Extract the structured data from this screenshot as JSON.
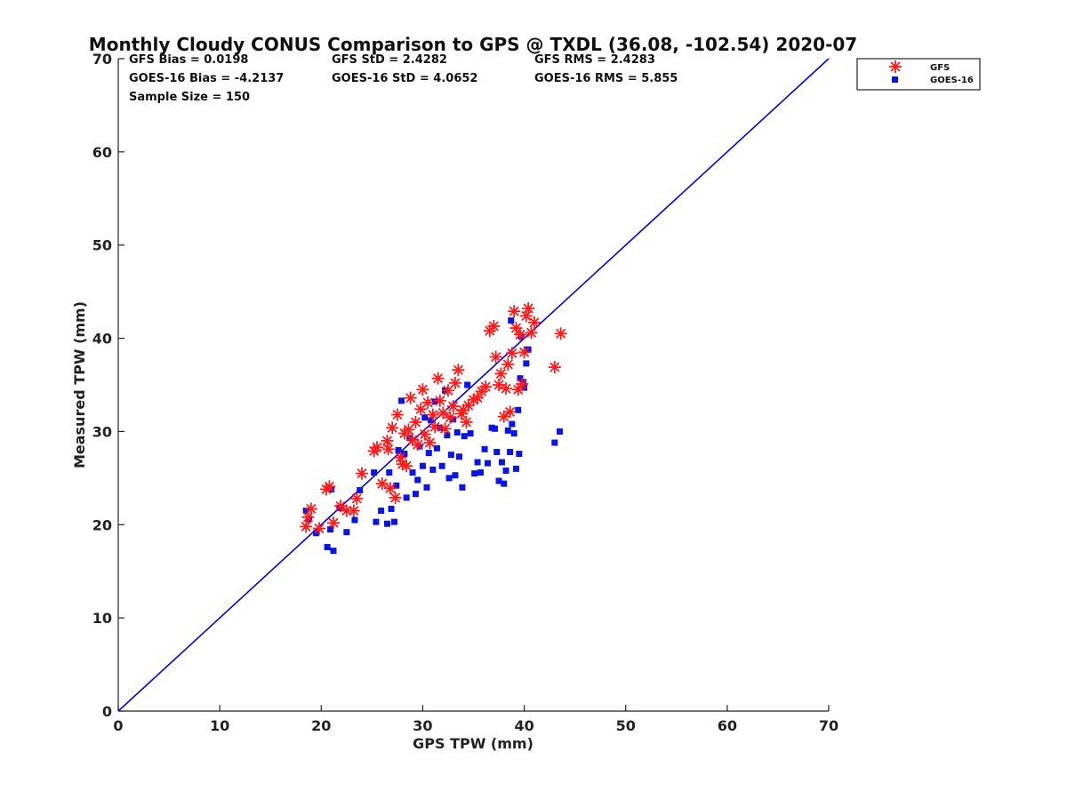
{
  "chart_data": {
    "type": "scatter",
    "title": "Monthly Cloudy CONUS Comparison to GPS @ TXDL (36.08, -102.54) 2020-07",
    "xlabel": "GPS TPW (mm)",
    "ylabel": "Measured TPW (mm)",
    "xlim": [
      0,
      70
    ],
    "ylim": [
      0,
      70
    ],
    "xticks": [
      "0",
      "10",
      "20",
      "30",
      "40",
      "50",
      "60",
      "70"
    ],
    "yticks": [
      "0",
      "10",
      "20",
      "30",
      "40",
      "50",
      "60",
      "70"
    ],
    "grid": false,
    "legend_position": "top-right",
    "reference_line": {
      "name": "1:1 line",
      "color": "#0000ee",
      "x": [
        0,
        70
      ],
      "y": [
        0,
        70
      ]
    },
    "stats": [
      "GFS Bias = 0.0198",
      "GFS StD = 2.4282",
      "GFS RMS = 2.4283",
      "GOES-16 Bias = -4.2137",
      "GOES-16 StD = 4.0652",
      "GOES-16 RMS = 5.855",
      "Sample Size = 150"
    ],
    "series": [
      {
        "name": "GFS",
        "marker": "asterisk",
        "color": "#ff1a1a",
        "points": [
          [
            18.5,
            19.8
          ],
          [
            18.7,
            20.8
          ],
          [
            19.0,
            21.7
          ],
          [
            19.8,
            19.6
          ],
          [
            20.5,
            23.8
          ],
          [
            20.8,
            24.1
          ],
          [
            21.2,
            20.2
          ],
          [
            21.9,
            22.0
          ],
          [
            22.5,
            21.5
          ],
          [
            23.2,
            21.5
          ],
          [
            23.5,
            22.8
          ],
          [
            24.0,
            25.5
          ],
          [
            25.2,
            27.9
          ],
          [
            25.5,
            28.3
          ],
          [
            26.0,
            24.4
          ],
          [
            26.5,
            29.0
          ],
          [
            26.6,
            28.1
          ],
          [
            26.8,
            23.9
          ],
          [
            27.0,
            30.4
          ],
          [
            27.3,
            22.9
          ],
          [
            27.5,
            31.8
          ],
          [
            27.8,
            27.2
          ],
          [
            28.0,
            26.5
          ],
          [
            28.2,
            29.8
          ],
          [
            28.4,
            26.3
          ],
          [
            28.6,
            30.2
          ],
          [
            28.8,
            33.6
          ],
          [
            29.0,
            29.1
          ],
          [
            29.3,
            31.0
          ],
          [
            29.5,
            28.6
          ],
          [
            29.8,
            32.4
          ],
          [
            30.0,
            34.5
          ],
          [
            30.2,
            29.7
          ],
          [
            30.5,
            33.1
          ],
          [
            30.7,
            28.8
          ],
          [
            31.0,
            31.8
          ],
          [
            31.2,
            30.5
          ],
          [
            31.5,
            35.7
          ],
          [
            31.7,
            33.3
          ],
          [
            32.0,
            32.0
          ],
          [
            32.2,
            30.3
          ],
          [
            32.5,
            34.4
          ],
          [
            32.7,
            31.5
          ],
          [
            33.0,
            32.7
          ],
          [
            33.2,
            35.2
          ],
          [
            33.5,
            36.6
          ],
          [
            33.8,
            31.9
          ],
          [
            34.0,
            32.3
          ],
          [
            34.3,
            31.0
          ],
          [
            34.5,
            32.8
          ],
          [
            35.0,
            33.4
          ],
          [
            35.4,
            33.6
          ],
          [
            35.8,
            34.3
          ],
          [
            36.2,
            34.8
          ],
          [
            36.6,
            40.8
          ],
          [
            37.0,
            41.3
          ],
          [
            37.2,
            38.0
          ],
          [
            37.5,
            35.0
          ],
          [
            37.7,
            36.2
          ],
          [
            38.0,
            31.6
          ],
          [
            38.2,
            34.6
          ],
          [
            38.4,
            37.2
          ],
          [
            38.6,
            32.1
          ],
          [
            38.8,
            38.4
          ],
          [
            39.0,
            42.9
          ],
          [
            39.2,
            41.1
          ],
          [
            39.4,
            34.5
          ],
          [
            39.6,
            40.4
          ],
          [
            39.8,
            35.1
          ],
          [
            40.0,
            38.5
          ],
          [
            40.2,
            42.4
          ],
          [
            40.4,
            43.2
          ],
          [
            40.7,
            40.6
          ],
          [
            41.0,
            41.7
          ],
          [
            43.0,
            36.9
          ],
          [
            43.6,
            40.5
          ]
        ]
      },
      {
        "name": "GOES-16",
        "marker": "square",
        "color": "#0a14e6",
        "points": [
          [
            18.5,
            21.5
          ],
          [
            18.8,
            20.6
          ],
          [
            19.5,
            19.1
          ],
          [
            20.6,
            17.6
          ],
          [
            20.9,
            19.5
          ],
          [
            21.2,
            17.2
          ],
          [
            21.0,
            23.8
          ],
          [
            21.8,
            21.8
          ],
          [
            22.5,
            19.2
          ],
          [
            23.3,
            20.5
          ],
          [
            23.8,
            23.7
          ],
          [
            25.2,
            25.6
          ],
          [
            25.4,
            20.3
          ],
          [
            25.9,
            21.5
          ],
          [
            26.5,
            20.1
          ],
          [
            26.7,
            25.6
          ],
          [
            26.9,
            21.7
          ],
          [
            27.2,
            20.3
          ],
          [
            27.4,
            24.2
          ],
          [
            27.6,
            28.0
          ],
          [
            27.9,
            33.3
          ],
          [
            28.2,
            27.6
          ],
          [
            28.4,
            22.9
          ],
          [
            28.7,
            29.3
          ],
          [
            29.0,
            25.6
          ],
          [
            29.3,
            23.3
          ],
          [
            29.5,
            24.8
          ],
          [
            29.7,
            28.4
          ],
          [
            30.0,
            26.3
          ],
          [
            30.2,
            31.5
          ],
          [
            30.4,
            24.0
          ],
          [
            30.6,
            27.7
          ],
          [
            30.8,
            31.2
          ],
          [
            31.0,
            25.9
          ],
          [
            31.2,
            33.2
          ],
          [
            31.4,
            28.2
          ],
          [
            31.7,
            30.4
          ],
          [
            31.9,
            26.3
          ],
          [
            32.2,
            34.4
          ],
          [
            32.4,
            29.6
          ],
          [
            32.6,
            25.0
          ],
          [
            32.8,
            27.5
          ],
          [
            33.0,
            31.3
          ],
          [
            33.2,
            25.3
          ],
          [
            33.4,
            29.9
          ],
          [
            33.6,
            27.3
          ],
          [
            33.9,
            24.0
          ],
          [
            34.1,
            29.5
          ],
          [
            34.4,
            35.0
          ],
          [
            34.7,
            29.8
          ],
          [
            35.1,
            25.5
          ],
          [
            35.4,
            26.7
          ],
          [
            35.7,
            25.6
          ],
          [
            36.1,
            28.1
          ],
          [
            36.4,
            26.6
          ],
          [
            36.8,
            30.4
          ],
          [
            37.1,
            30.3
          ],
          [
            37.3,
            27.8
          ],
          [
            37.5,
            24.7
          ],
          [
            37.8,
            26.7
          ],
          [
            38.0,
            24.4
          ],
          [
            38.2,
            25.8
          ],
          [
            38.4,
            30.1
          ],
          [
            38.6,
            27.8
          ],
          [
            38.8,
            30.8
          ],
          [
            39.0,
            29.8
          ],
          [
            39.2,
            26.0
          ],
          [
            39.4,
            32.3
          ],
          [
            39.5,
            27.6
          ],
          [
            39.6,
            35.7
          ],
          [
            39.7,
            40.2
          ],
          [
            39.9,
            35.3
          ],
          [
            40.0,
            34.7
          ],
          [
            40.2,
            37.3
          ],
          [
            40.4,
            38.8
          ],
          [
            38.7,
            41.9
          ],
          [
            43.0,
            28.8
          ],
          [
            43.5,
            30.0
          ]
        ]
      }
    ]
  }
}
